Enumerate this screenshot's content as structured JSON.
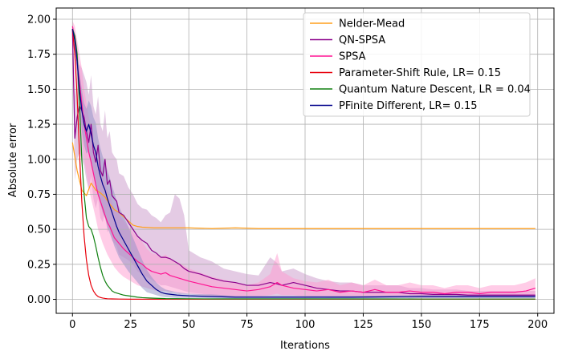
{
  "chart_data": {
    "type": "line",
    "title": "",
    "xlabel": "Iterations",
    "ylabel": "Absolute error",
    "xlim": [
      -7,
      207
    ],
    "ylim": [
      -0.1,
      2.08
    ],
    "xticks": [
      "0",
      "25",
      "50",
      "75",
      "100",
      "125",
      "150",
      "175",
      "200"
    ],
    "yticks": [
      "0.00",
      "0.25",
      "0.50",
      "0.75",
      "1.00",
      "1.25",
      "1.50",
      "1.75",
      "2.00"
    ],
    "grid": true,
    "legend_position": "top-right",
    "series": [
      {
        "name": "Nelder-Mead",
        "color": "#ff9f1c",
        "x": [
          0,
          2,
          4,
          6,
          8,
          10,
          12,
          14,
          16,
          18,
          20,
          22,
          24,
          26,
          28,
          30,
          35,
          40,
          50,
          60,
          70,
          80,
          100,
          120,
          140,
          160,
          180,
          199
        ],
        "y": [
          1.12,
          0.92,
          0.78,
          0.74,
          0.83,
          0.78,
          0.76,
          0.73,
          0.68,
          0.64,
          0.62,
          0.59,
          0.56,
          0.53,
          0.52,
          0.515,
          0.51,
          0.51,
          0.51,
          0.505,
          0.51,
          0.505,
          0.505,
          0.505,
          0.505,
          0.505,
          0.505,
          0.505
        ]
      },
      {
        "name": "QN-SPSA",
        "color": "#8b008b",
        "band": true,
        "band_color": "#c997c9",
        "x": [
          0,
          1,
          2,
          3,
          4,
          5,
          6,
          7,
          8,
          9,
          10,
          11,
          12,
          13,
          14,
          15,
          16,
          17,
          18,
          19,
          20,
          22,
          24,
          26,
          28,
          30,
          32,
          34,
          36,
          38,
          40,
          42,
          44,
          46,
          48,
          50,
          55,
          60,
          65,
          70,
          75,
          80,
          85,
          88,
          90,
          95,
          100,
          105,
          110,
          115,
          120,
          125,
          130,
          135,
          140,
          145,
          150,
          155,
          160,
          165,
          170,
          175,
          180,
          185,
          190,
          195,
          199
        ],
        "y": [
          1.93,
          1.15,
          1.3,
          1.38,
          1.35,
          1.3,
          1.2,
          1.12,
          1.25,
          1.05,
          0.98,
          1.1,
          0.92,
          0.88,
          1.0,
          0.82,
          0.85,
          0.74,
          0.72,
          0.7,
          0.62,
          0.6,
          0.55,
          0.5,
          0.45,
          0.42,
          0.4,
          0.35,
          0.33,
          0.3,
          0.3,
          0.29,
          0.27,
          0.25,
          0.22,
          0.2,
          0.18,
          0.15,
          0.13,
          0.12,
          0.1,
          0.1,
          0.12,
          0.11,
          0.1,
          0.12,
          0.1,
          0.08,
          0.07,
          0.06,
          0.06,
          0.05,
          0.05,
          0.05,
          0.05,
          0.04,
          0.04,
          0.035,
          0.035,
          0.035,
          0.03,
          0.03,
          0.03,
          0.03,
          0.03,
          0.03,
          0.03
        ],
        "band_low": [
          1.85,
          0.85,
          1.0,
          1.05,
          1.0,
          0.95,
          0.85,
          0.78,
          0.88,
          0.72,
          0.65,
          0.72,
          0.58,
          0.55,
          0.62,
          0.48,
          0.5,
          0.42,
          0.4,
          0.38,
          0.32,
          0.3,
          0.28,
          0.25,
          0.2,
          0.18,
          0.16,
          0.14,
          0.12,
          0.1,
          0.1,
          0.09,
          0.08,
          0.07,
          0.06,
          0.05,
          0.04,
          0.03,
          0.02,
          0.02,
          0.02,
          0.02,
          0.02,
          0.02,
          0.02,
          0.02,
          0.02,
          0.015,
          0.01,
          0.01,
          0.01,
          0.01,
          0.01,
          0.01,
          0.01,
          0.01,
          0.01,
          0.01,
          0.01,
          0.01,
          0.01,
          0.01,
          0.01,
          0.01,
          0.01,
          0.01,
          0.01
        ],
        "band_high": [
          1.97,
          1.45,
          1.6,
          1.68,
          1.65,
          1.6,
          1.55,
          1.46,
          1.6,
          1.38,
          1.32,
          1.45,
          1.25,
          1.2,
          1.35,
          1.15,
          1.2,
          1.05,
          1.02,
          1.0,
          0.9,
          0.88,
          0.8,
          0.75,
          0.68,
          0.65,
          0.64,
          0.6,
          0.58,
          0.55,
          0.6,
          0.62,
          0.75,
          0.72,
          0.6,
          0.35,
          0.3,
          0.27,
          0.22,
          0.2,
          0.18,
          0.17,
          0.3,
          0.26,
          0.2,
          0.22,
          0.18,
          0.15,
          0.13,
          0.12,
          0.12,
          0.1,
          0.1,
          0.1,
          0.1,
          0.08,
          0.08,
          0.07,
          0.07,
          0.07,
          0.06,
          0.06,
          0.06,
          0.06,
          0.06,
          0.06,
          0.06
        ]
      },
      {
        "name": "SPSA",
        "color": "#ff1493",
        "band": true,
        "band_color": "#ff9ad0",
        "x": [
          0,
          1,
          2,
          3,
          4,
          5,
          6,
          7,
          8,
          9,
          10,
          11,
          12,
          13,
          14,
          15,
          16,
          17,
          18,
          19,
          20,
          22,
          24,
          26,
          28,
          30,
          32,
          34,
          36,
          38,
          40,
          42,
          44,
          46,
          48,
          50,
          55,
          60,
          65,
          70,
          75,
          80,
          85,
          88,
          90,
          95,
          100,
          105,
          110,
          115,
          120,
          125,
          130,
          135,
          140,
          145,
          150,
          155,
          160,
          165,
          170,
          175,
          180,
          185,
          190,
          195,
          199
        ],
        "y": [
          1.95,
          1.85,
          1.7,
          1.55,
          1.4,
          1.25,
          1.15,
          1.05,
          0.98,
          0.9,
          0.82,
          0.75,
          0.7,
          0.65,
          0.6,
          0.55,
          0.52,
          0.48,
          0.44,
          0.42,
          0.4,
          0.36,
          0.33,
          0.3,
          0.27,
          0.25,
          0.22,
          0.2,
          0.19,
          0.18,
          0.19,
          0.17,
          0.16,
          0.15,
          0.14,
          0.13,
          0.11,
          0.09,
          0.08,
          0.07,
          0.06,
          0.07,
          0.09,
          0.12,
          0.1,
          0.08,
          0.07,
          0.06,
          0.07,
          0.05,
          0.06,
          0.05,
          0.07,
          0.05,
          0.05,
          0.06,
          0.05,
          0.05,
          0.04,
          0.05,
          0.05,
          0.04,
          0.05,
          0.05,
          0.05,
          0.06,
          0.08
        ],
        "band_low": [
          1.9,
          1.75,
          1.55,
          1.35,
          1.15,
          1.0,
          0.9,
          0.8,
          0.72,
          0.65,
          0.58,
          0.5,
          0.45,
          0.4,
          0.36,
          0.32,
          0.29,
          0.26,
          0.23,
          0.21,
          0.19,
          0.16,
          0.14,
          0.12,
          0.1,
          0.09,
          0.08,
          0.07,
          0.06,
          0.06,
          0.06,
          0.05,
          0.05,
          0.04,
          0.04,
          0.04,
          0.03,
          0.02,
          0.02,
          0.02,
          0.02,
          0.02,
          0.03,
          0.04,
          0.03,
          0.03,
          0.02,
          0.02,
          0.02,
          0.02,
          0.02,
          0.02,
          0.02,
          0.02,
          0.02,
          0.02,
          0.02,
          0.02,
          0.02,
          0.02,
          0.02,
          0.02,
          0.02,
          0.02,
          0.02,
          0.02,
          0.03
        ],
        "band_high": [
          1.99,
          1.95,
          1.85,
          1.75,
          1.65,
          1.5,
          1.4,
          1.3,
          1.24,
          1.15,
          1.06,
          1.0,
          0.95,
          0.9,
          0.84,
          0.78,
          0.75,
          0.7,
          0.65,
          0.63,
          0.61,
          0.56,
          0.52,
          0.48,
          0.44,
          0.41,
          0.36,
          0.33,
          0.32,
          0.3,
          0.32,
          0.29,
          0.27,
          0.26,
          0.24,
          0.22,
          0.19,
          0.16,
          0.14,
          0.12,
          0.1,
          0.12,
          0.18,
          0.33,
          0.2,
          0.15,
          0.13,
          0.12,
          0.14,
          0.1,
          0.12,
          0.1,
          0.14,
          0.1,
          0.1,
          0.12,
          0.1,
          0.1,
          0.08,
          0.1,
          0.1,
          0.08,
          0.1,
          0.1,
          0.1,
          0.12,
          0.15
        ]
      },
      {
        "name": "Parameter-Shift Rule, LR= 0.15",
        "color": "#e8000b",
        "x": [
          0,
          1,
          2,
          3,
          4,
          5,
          6,
          7,
          8,
          9,
          10,
          11,
          12,
          13,
          14,
          15,
          17,
          20,
          25,
          30,
          40,
          60,
          100,
          150,
          199
        ],
        "y": [
          1.93,
          1.75,
          1.45,
          1.05,
          0.7,
          0.45,
          0.28,
          0.17,
          0.1,
          0.06,
          0.035,
          0.02,
          0.013,
          0.009,
          0.006,
          0.004,
          0.003,
          0.002,
          0.001,
          0.001,
          0.001,
          0.001,
          0.001,
          0.001,
          0.001
        ]
      },
      {
        "name": "Quantum Nature Descent, LR = 0.04",
        "color": "#108010",
        "x": [
          0,
          1,
          2,
          3,
          4,
          5,
          6,
          7,
          8,
          9,
          10,
          11,
          12,
          13,
          14,
          15,
          16,
          17,
          18,
          19,
          20,
          22,
          24,
          26,
          28,
          30,
          35,
          40,
          50,
          60,
          80,
          100,
          150,
          199
        ],
        "y": [
          1.93,
          1.88,
          1.75,
          1.4,
          1.0,
          0.75,
          0.58,
          0.52,
          0.5,
          0.45,
          0.38,
          0.3,
          0.23,
          0.17,
          0.13,
          0.1,
          0.08,
          0.06,
          0.05,
          0.045,
          0.04,
          0.03,
          0.025,
          0.02,
          0.015,
          0.012,
          0.008,
          0.005,
          0.004,
          0.003,
          0.003,
          0.003,
          0.002,
          0.002
        ]
      },
      {
        "name": "PFinite Different, LR= 0.15",
        "color": "#00008b",
        "band": true,
        "band_color": "#8f8fc6",
        "x": [
          0,
          1,
          2,
          3,
          4,
          5,
          6,
          7,
          8,
          9,
          10,
          11,
          12,
          13,
          14,
          15,
          16,
          17,
          18,
          19,
          20,
          22,
          24,
          26,
          28,
          30,
          32,
          34,
          36,
          38,
          40,
          45,
          50,
          60,
          70,
          80,
          100,
          120,
          150,
          175,
          199
        ],
        "y": [
          1.93,
          1.85,
          1.7,
          1.5,
          1.35,
          1.25,
          1.2,
          1.25,
          1.18,
          1.1,
          1.05,
          0.95,
          0.88,
          0.82,
          0.78,
          0.72,
          0.67,
          0.62,
          0.57,
          0.52,
          0.48,
          0.42,
          0.36,
          0.3,
          0.24,
          0.18,
          0.13,
          0.1,
          0.07,
          0.05,
          0.04,
          0.03,
          0.025,
          0.02,
          0.015,
          0.015,
          0.015,
          0.015,
          0.02,
          0.02,
          0.02
        ],
        "band_low": [
          1.9,
          1.8,
          1.6,
          1.38,
          1.2,
          1.1,
          1.04,
          1.06,
          0.98,
          0.9,
          0.84,
          0.75,
          0.68,
          0.62,
          0.58,
          0.52,
          0.47,
          0.43,
          0.38,
          0.34,
          0.3,
          0.25,
          0.2,
          0.16,
          0.12,
          0.08,
          0.05,
          0.04,
          0.03,
          0.02,
          0.015,
          0.01,
          0.01,
          0.008,
          0.006,
          0.006,
          0.006,
          0.006,
          0.008,
          0.008,
          0.008
        ],
        "band_high": [
          1.96,
          1.9,
          1.8,
          1.62,
          1.5,
          1.4,
          1.36,
          1.42,
          1.38,
          1.3,
          1.26,
          1.15,
          1.08,
          1.02,
          0.98,
          0.92,
          0.87,
          0.81,
          0.76,
          0.7,
          0.66,
          0.59,
          0.52,
          0.44,
          0.36,
          0.28,
          0.21,
          0.16,
          0.12,
          0.09,
          0.07,
          0.05,
          0.04,
          0.035,
          0.025,
          0.025,
          0.025,
          0.025,
          0.03,
          0.03,
          0.03
        ]
      }
    ]
  }
}
